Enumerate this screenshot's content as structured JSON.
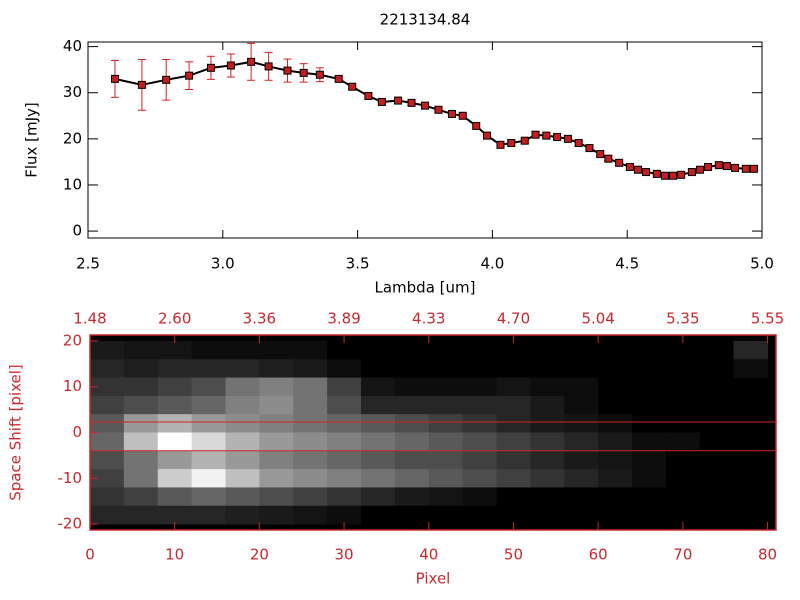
{
  "chart_data": [
    {
      "type": "line",
      "title": "2213134.84",
      "xlabel": "Lambda [um]",
      "ylabel": "Flux [mJy]",
      "x": [
        2.6,
        2.7,
        2.79,
        2.875,
        2.956,
        3.03,
        3.105,
        3.17,
        3.24,
        3.3,
        3.36,
        3.43,
        3.48,
        3.54,
        3.59,
        3.65,
        3.7,
        3.75,
        3.8,
        3.85,
        3.89,
        3.94,
        3.98,
        4.03,
        4.07,
        4.12,
        4.16,
        4.2,
        4.24,
        4.28,
        4.32,
        4.36,
        4.4,
        4.43,
        4.47,
        4.51,
        4.54,
        4.57,
        4.61,
        4.64,
        4.67,
        4.7,
        4.74,
        4.77,
        4.8,
        4.84,
        4.87,
        4.9,
        4.94,
        4.97
      ],
      "values": [
        33.0,
        31.7,
        32.8,
        33.7,
        35.4,
        35.9,
        36.7,
        35.7,
        34.8,
        34.3,
        33.9,
        33.0,
        31.3,
        29.3,
        28.0,
        28.3,
        27.8,
        27.2,
        26.3,
        25.4,
        25.0,
        22.8,
        20.7,
        18.7,
        19.1,
        19.6,
        20.9,
        20.7,
        20.4,
        20.0,
        19.1,
        18.0,
        16.7,
        15.7,
        14.8,
        13.9,
        13.3,
        12.8,
        12.4,
        12.0,
        12.0,
        12.2,
        12.8,
        13.3,
        13.9,
        14.3,
        14.1,
        13.7,
        13.5,
        13.5
      ],
      "errors": [
        4.0,
        5.5,
        4.4,
        3.0,
        2.5,
        2.5,
        4.0,
        3.0,
        2.5,
        2.0,
        1.5,
        0.5,
        0.5,
        0.5,
        0.5,
        0.5,
        0.5,
        0.5,
        0.5,
        0.5,
        0.5,
        0.5,
        0.5,
        0.5,
        0.5,
        0.5,
        0.5,
        0.5,
        0.5,
        0.5,
        0.5,
        0.5,
        0.5,
        0.5,
        0.5,
        0.5,
        0.5,
        0.5,
        0.5,
        0.5,
        0.5,
        0.5,
        0.5,
        0.5,
        0.5,
        0.5,
        0.5,
        0.5,
        0.5,
        0.5
      ],
      "line_color": "#000000",
      "marker_color": "#c41e1e",
      "error_color": "#d42020",
      "xlim": [
        2.5,
        5.0
      ],
      "ylim": [
        -1.5,
        41
      ],
      "xticks": [
        2.5,
        {
          "value": 3,
          "label": "3.0"
        },
        3.5,
        {
          "value": 4,
          "label": "4.0"
        },
        4.5,
        {
          "value": 5,
          "label": "5.0"
        }
      ],
      "yticks": [
        0,
        10,
        20,
        30,
        40
      ]
    },
    {
      "type": "heatmap",
      "xlabel": "Pixel",
      "ylabel": "Space Shift [pixel]",
      "color": "#c8282d",
      "xbins": [
        0,
        4,
        8,
        12,
        16,
        20,
        24,
        28,
        32,
        36,
        40,
        44,
        48,
        52,
        56,
        60,
        64,
        68,
        72,
        76,
        80
      ],
      "ybins": [
        20,
        16,
        12,
        8,
        4,
        0,
        -4,
        -8,
        -12,
        -16,
        -20
      ],
      "z": [
        [
          10,
          8,
          8,
          5,
          5,
          5,
          5,
          0,
          0,
          0,
          0,
          0,
          0,
          0,
          0,
          0,
          0,
          0,
          0,
          15
        ],
        [
          15,
          12,
          15,
          15,
          15,
          12,
          10,
          5,
          0,
          0,
          0,
          0,
          0,
          0,
          0,
          0,
          0,
          0,
          0,
          5
        ],
        [
          20,
          20,
          25,
          30,
          45,
          50,
          45,
          25,
          8,
          5,
          5,
          5,
          8,
          5,
          5,
          0,
          0,
          0,
          0,
          0
        ],
        [
          25,
          30,
          35,
          40,
          50,
          55,
          45,
          30,
          15,
          15,
          15,
          15,
          15,
          10,
          5,
          0,
          0,
          0,
          0,
          0
        ],
        [
          35,
          60,
          70,
          60,
          55,
          50,
          45,
          40,
          35,
          30,
          25,
          20,
          15,
          10,
          8,
          5,
          0,
          0,
          0,
          0
        ],
        [
          40,
          75,
          100,
          85,
          70,
          60,
          55,
          50,
          45,
          40,
          35,
          30,
          25,
          20,
          15,
          10,
          5,
          5,
          0,
          0
        ],
        [
          30,
          45,
          60,
          70,
          60,
          50,
          45,
          40,
          35,
          30,
          30,
          25,
          20,
          15,
          10,
          8,
          5,
          0,
          0,
          0
        ],
        [
          25,
          45,
          80,
          95,
          75,
          60,
          55,
          50,
          45,
          40,
          35,
          30,
          25,
          20,
          15,
          10,
          5,
          0,
          0,
          0
        ],
        [
          20,
          25,
          35,
          40,
          35,
          30,
          25,
          20,
          15,
          10,
          8,
          5,
          0,
          0,
          0,
          0,
          0,
          0,
          0,
          0
        ],
        [
          15,
          15,
          15,
          15,
          12,
          10,
          8,
          5,
          0,
          0,
          0,
          0,
          0,
          0,
          0,
          0,
          0,
          0,
          0,
          0
        ]
      ],
      "zlim": [
        0,
        100
      ],
      "hlines": [
        2.3,
        -4.0
      ],
      "xlim": [
        0,
        81
      ],
      "ylim": [
        -21.3,
        21.3
      ],
      "xticks": [
        0,
        10,
        20,
        30,
        40,
        50,
        60,
        70,
        80
      ],
      "x2ticks": [
        {
          "value": 0,
          "label": "1.48"
        },
        {
          "value": 10,
          "label": "2.60"
        },
        {
          "value": 20,
          "label": "3.36"
        },
        {
          "value": 30,
          "label": "3.89"
        },
        {
          "value": 40,
          "label": "4.33"
        },
        {
          "value": 50,
          "label": "4.70"
        },
        {
          "value": 60,
          "label": "5.04"
        },
        {
          "value": 70,
          "label": "5.35"
        },
        {
          "value": 80,
          "label": "5.55"
        }
      ],
      "yticks": [
        -20,
        -10,
        0,
        10,
        20
      ]
    }
  ]
}
